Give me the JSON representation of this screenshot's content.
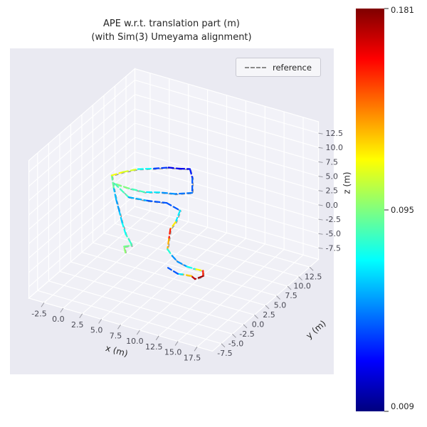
{
  "figure": {
    "title_line1": "APE w.r.t. translation part (m)",
    "title_line2": "(with Sim(3) Umeyama alignment)",
    "background_color": "#ffffff",
    "axes_background_color": "#eaeaf2",
    "grid_color": "#ffffff"
  },
  "legend": {
    "items": [
      {
        "label": "reference",
        "style": "dashed",
        "color": "#8a8a8a"
      }
    ]
  },
  "axes": {
    "xlabel": "x (m)",
    "ylabel": "y (m)",
    "zlabel": "z (m)",
    "xtick_labels": [
      "-2.5",
      "0.0",
      "2.5",
      "5.0",
      "7.5",
      "10.0",
      "12.5",
      "15.0",
      "17.5"
    ],
    "ytick_labels": [
      "-7.5",
      "-5.0",
      "-2.5",
      "0.0",
      "2.5",
      "5.0",
      "7.5",
      "10.0",
      "12.5"
    ],
    "ztick_labels": [
      "-7.5",
      "-5.0",
      "-2.5",
      "0.0",
      "2.5",
      "5.0",
      "7.5",
      "10.0",
      "12.5"
    ],
    "xticks": [
      -2.5,
      0.0,
      2.5,
      5.0,
      7.5,
      10.0,
      12.5,
      15.0,
      17.5
    ],
    "yticks": [
      -7.5,
      -5.0,
      -2.5,
      0.0,
      2.5,
      5.0,
      7.5,
      10.0,
      12.5
    ],
    "zticks": [
      -7.5,
      -5.0,
      -2.5,
      0.0,
      2.5,
      5.0,
      7.5,
      10.0,
      12.5
    ]
  },
  "colorbar": {
    "colormap": "jet",
    "min": 0.009,
    "mid": 0.095,
    "max": 0.181,
    "tick_labels": [
      "0.181",
      "0.095",
      "0.009"
    ]
  },
  "chart_data": {
    "type": "line",
    "projection": "3d",
    "title": "APE w.r.t. translation part (m) (with Sim(3) Umeyama alignment)",
    "xlabel": "x (m)",
    "ylabel": "y (m)",
    "zlabel": "z (m)",
    "xlim": [
      -4.5,
      19.5
    ],
    "ylim": [
      -9.5,
      14.5
    ],
    "zlim": [
      -9.5,
      14.5
    ],
    "view": {
      "elev": 30,
      "azim": -60,
      "grid": true,
      "legend_position": "upper right"
    },
    "colormap": "jet",
    "color_range": [
      0.009,
      0.181
    ],
    "series": [
      {
        "name": "trajectory_colored_by_ape",
        "style": "dashed",
        "points_xyze": [
          [
            3.5,
            -1.5,
            -3.8,
            0.1
          ],
          [
            2.8,
            -0.6,
            -3.6,
            0.095
          ],
          [
            3.3,
            0.2,
            -3.8,
            0.09
          ],
          [
            3.6,
            -0.4,
            -2.9,
            0.085
          ],
          [
            3.2,
            -0.9,
            -1.1,
            0.08
          ],
          [
            2.9,
            -1.2,
            1.0,
            0.07
          ],
          [
            2.7,
            -1.5,
            3.1,
            0.06
          ],
          [
            2.4,
            -1.7,
            5.2,
            0.055
          ],
          [
            2.2,
            -1.9,
            7.3,
            0.07
          ],
          [
            2.0,
            -2.0,
            9.4,
            0.11
          ],
          [
            2.8,
            -0.8,
            9.5,
            0.12
          ],
          [
            4.0,
            0.5,
            9.6,
            0.1
          ],
          [
            5.5,
            1.5,
            9.6,
            0.05
          ],
          [
            7.0,
            2.2,
            9.9,
            0.03
          ],
          [
            8.2,
            2.6,
            9.9,
            0.025
          ],
          [
            9.4,
            2.9,
            10.1,
            0.03
          ],
          [
            10.0,
            2.4,
            9.1,
            0.04
          ],
          [
            10.5,
            1.5,
            7.3,
            0.05
          ],
          [
            9.0,
            0.2,
            7.4,
            0.05
          ],
          [
            7.5,
            -0.7,
            7.7,
            0.06
          ],
          [
            6.0,
            -1.5,
            7.7,
            0.08
          ],
          [
            4.2,
            -2.0,
            8.0,
            0.09
          ],
          [
            2.5,
            -2.2,
            8.3,
            0.1
          ],
          [
            4.5,
            -2.5,
            6.9,
            0.07
          ],
          [
            6.5,
            -1.8,
            6.6,
            0.05
          ],
          [
            8.5,
            -0.8,
            6.3,
            0.04
          ],
          [
            9.5,
            0.5,
            4.5,
            0.05
          ],
          [
            9.2,
            0.0,
            2.7,
            0.09
          ],
          [
            8.8,
            -0.5,
            1.7,
            0.15
          ],
          [
            8.9,
            -1.0,
            0.3,
            0.16
          ],
          [
            9.0,
            -1.5,
            -1.1,
            0.1
          ],
          [
            9.5,
            -1.3,
            -2.2,
            0.06
          ],
          [
            10.0,
            -1.0,
            -3.2,
            0.05
          ],
          [
            10.8,
            -0.2,
            -4.3,
            0.06
          ],
          [
            11.4,
            0.8,
            -5.2,
            0.09
          ],
          [
            11.8,
            1.7,
            -5.9,
            0.14
          ],
          [
            12.1,
            1.2,
            -6.4,
            0.17
          ],
          [
            11.5,
            0.4,
            -6.6,
            0.181
          ],
          [
            10.8,
            0.8,
            -6.6,
            0.16
          ],
          [
            9.9,
            0.4,
            -6.4,
            0.09
          ],
          [
            9.5,
            0.0,
            -6.2,
            0.05
          ],
          [
            8.5,
            -0.5,
            -5.2,
            0.04
          ]
        ]
      },
      {
        "name": "reference",
        "style": "dashed",
        "color": "#999999",
        "offset_from_estimate": [
          0.25,
          -0.25,
          0.15
        ]
      }
    ]
  }
}
